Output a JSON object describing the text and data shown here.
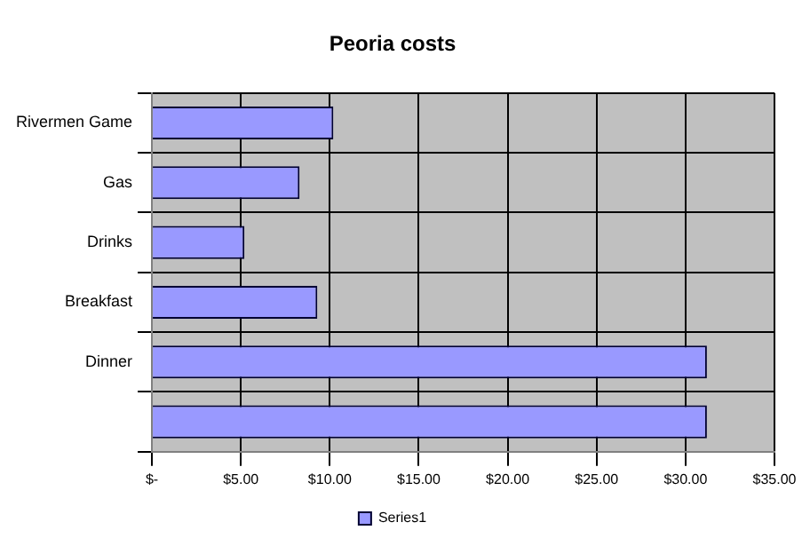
{
  "chart_data": {
    "type": "bar",
    "title": "Peoria costs",
    "orientation": "horizontal",
    "categories": [
      "Rivermen Game",
      "Gas",
      "Drinks",
      "Breakfast",
      "Dinner",
      null
    ],
    "series": [
      {
        "name": "Series1",
        "color": "#9999ff",
        "values": [
          10.2,
          8.3,
          5.2,
          9.3,
          31.2,
          31.2
        ]
      }
    ],
    "xlim": [
      0,
      35
    ],
    "xticks": [
      {
        "value": 0,
        "label": "$-"
      },
      {
        "value": 5,
        "label": "$5.00"
      },
      {
        "value": 10,
        "label": "$10.00"
      },
      {
        "value": 15,
        "label": "$15.00"
      },
      {
        "value": 20,
        "label": "$20.00"
      },
      {
        "value": 25,
        "label": "$25.00"
      },
      {
        "value": 30,
        "label": "$30.00"
      },
      {
        "value": 35,
        "label": "$35.00"
      }
    ],
    "grid": true,
    "legend": "bottom"
  }
}
